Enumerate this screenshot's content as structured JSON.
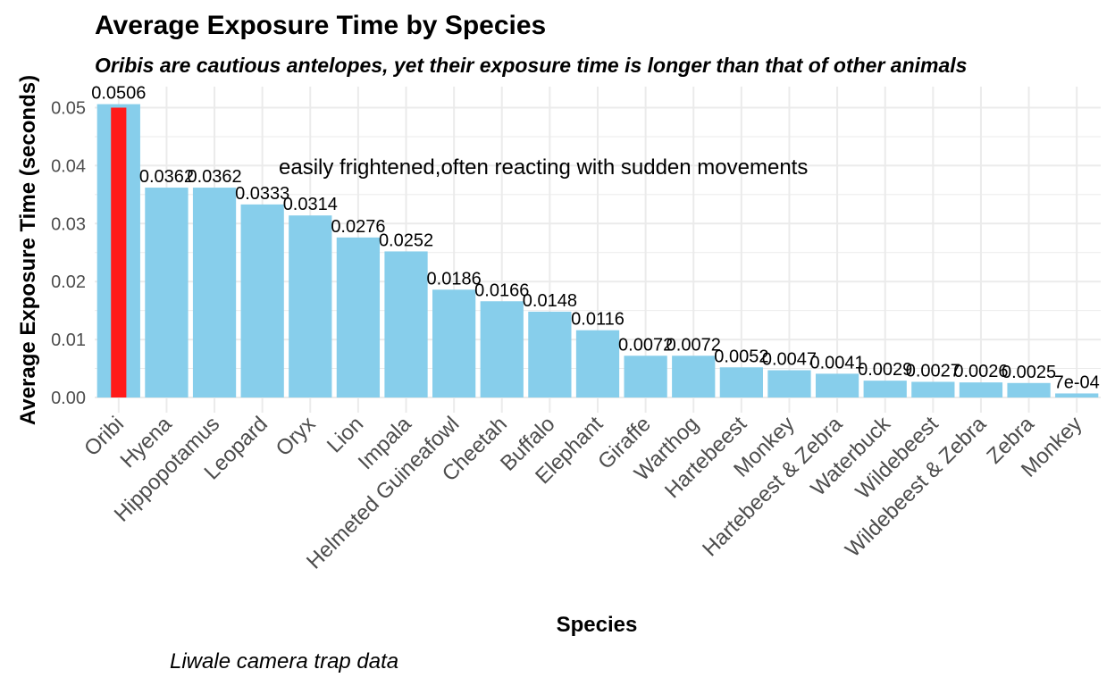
{
  "chart_data": {
    "type": "bar",
    "title": "Average Exposure Time by Species",
    "subtitle": "Oribis are cautious antelopes, yet their exposure time is longer than that of other animals",
    "xlabel": "Species",
    "ylabel": "Average Exposure Time (seconds)",
    "caption": "Liwale camera trap data",
    "annotation": "easily frightened,often reacting with sudden movements",
    "ylim": [
      -0.001,
      0.0515
    ],
    "yticks": [
      0.0,
      0.01,
      0.02,
      0.03,
      0.04,
      0.05
    ],
    "ytick_labels": [
      "0.00",
      "0.01",
      "0.02",
      "0.03",
      "0.04",
      "0.05"
    ],
    "grid": true,
    "legend": "none",
    "categories": [
      "Oribi",
      "Hyena",
      "Hippopotamus",
      "Leopard",
      "Oryx",
      "Lion",
      "Impala",
      "Helmeted Guineafowl",
      "Cheetah",
      "Buffalo",
      "Elephant",
      "Giraffe",
      "Warthog",
      "Hartebeest",
      "Monkey",
      "Hartebeest & Zebra",
      "Waterbuck",
      "Wildebeest",
      "Wildebeest & Zebra",
      "Zebra",
      "Monkey"
    ],
    "values": [
      0.0506,
      0.0362,
      0.0362,
      0.0333,
      0.0314,
      0.0276,
      0.0252,
      0.0186,
      0.0166,
      0.0148,
      0.0116,
      0.0072,
      0.0072,
      0.0052,
      0.0047,
      0.0041,
      0.0029,
      0.0027,
      0.0026,
      0.0025,
      0.0007
    ],
    "value_labels": [
      "0.0506",
      "0.0362",
      "0.0362",
      "0.0333",
      "0.0314",
      "0.0276",
      "0.0252",
      "0.0186",
      "0.0166",
      "0.0148",
      "0.0116",
      "0.0072",
      "0.0072",
      "0.0052",
      "0.0047",
      "0.0041",
      "0.0029",
      "0.0027",
      "0.0026",
      "0.0025",
      "7e-04"
    ],
    "highlight": {
      "category_index": 0,
      "value": 0.05
    },
    "colors": {
      "bar": "#87ceeb",
      "highlight": "#ff1a1a",
      "grid": "#ebebeb"
    }
  }
}
